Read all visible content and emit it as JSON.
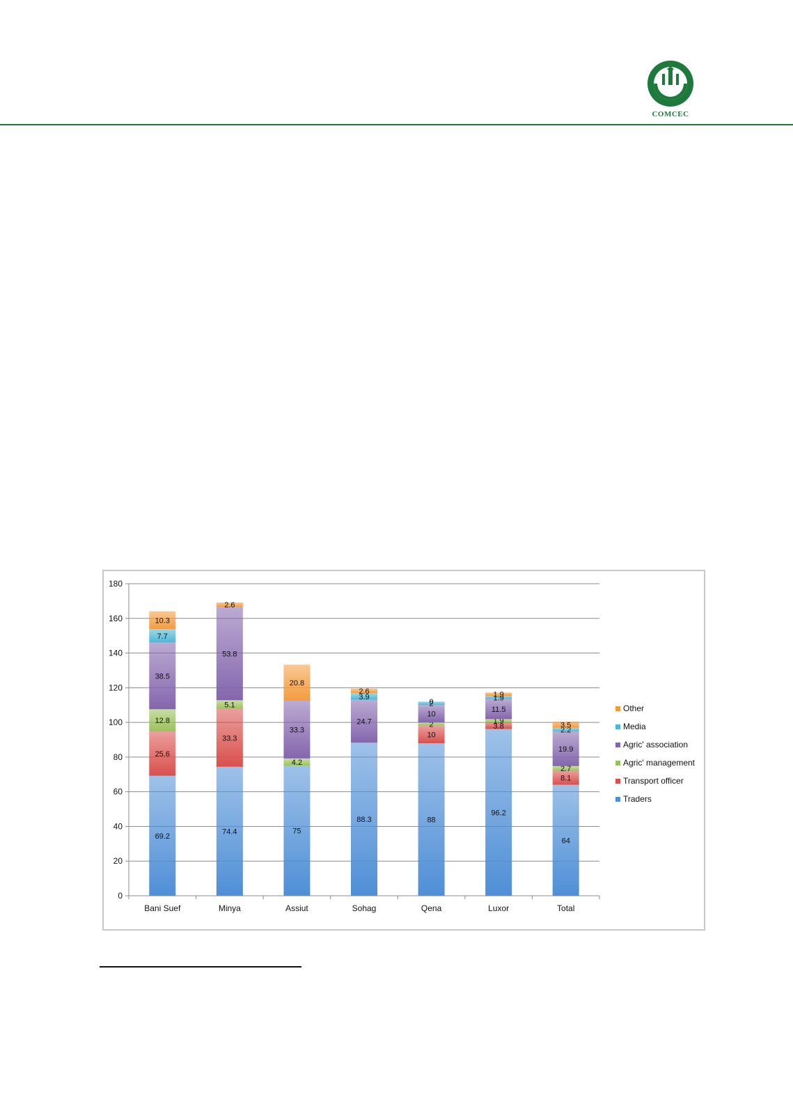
{
  "header": {
    "logo_text": "COMCEC",
    "logo_ring_text": "Cooperation for Development"
  },
  "colors": {
    "brand_green": "#1e7a3c",
    "Traders": "#4f8fd6",
    "Transport officer": "#d9504d",
    "Agric' management": "#9bc25a",
    "Agric' association": "#8466ad",
    "Media": "#4bb8d6",
    "Other": "#f39c3e"
  },
  "chart_data": {
    "type": "bar",
    "stacked": true,
    "title": "",
    "xlabel": "",
    "ylabel": "",
    "ylim": [
      0,
      180
    ],
    "yticks": [
      0,
      20,
      40,
      60,
      80,
      100,
      120,
      140,
      160,
      180
    ],
    "grid": true,
    "legend_position": "right",
    "categories": [
      "Bani Suef",
      "Minya",
      "Assiut",
      "Sohag",
      "Qena",
      "Luxor",
      "Total"
    ],
    "series": [
      {
        "name": "Traders",
        "values": [
          69.2,
          74.4,
          75,
          88.3,
          88,
          96.2,
          64
        ],
        "labels": [
          "69.2",
          "74.4",
          "75",
          "88.3",
          "88",
          "96.2",
          "64"
        ]
      },
      {
        "name": "Transport officer",
        "values": [
          25.6,
          33.3,
          0,
          0,
          10,
          3.8,
          8.1
        ],
        "labels": [
          "25.6",
          "33.3",
          "",
          "",
          "10",
          "3.8",
          "8.1"
        ]
      },
      {
        "name": "Agric' management",
        "values": [
          12.8,
          5.1,
          4.2,
          0,
          2,
          1.9,
          2.7
        ],
        "labels": [
          "12.8",
          "5.1",
          "4.2",
          "",
          "2",
          "1.9",
          "2.7"
        ]
      },
      {
        "name": "Agric' association",
        "values": [
          38.5,
          53.8,
          33.3,
          24.7,
          10,
          11.5,
          19.9
        ],
        "labels": [
          "38.5",
          "53.8",
          "33.3",
          "24.7",
          "10",
          "11.5",
          "19.9"
        ]
      },
      {
        "name": "Media",
        "values": [
          7.7,
          0,
          0,
          3.9,
          2,
          1.9,
          2.2
        ],
        "labels": [
          "7.7",
          "",
          "",
          "3.9",
          "2",
          "1.9",
          "2.2"
        ]
      },
      {
        "name": "Other",
        "values": [
          10.3,
          2.6,
          20.8,
          2.6,
          0,
          1.9,
          3.5
        ],
        "labels": [
          "10.3",
          "2.6",
          "20.8",
          "2.6",
          "0",
          "1.9",
          "3.5"
        ]
      }
    ],
    "legend_order": [
      "Other",
      "Media",
      "Agric' association",
      "Agric' management",
      "Transport officer",
      "Traders"
    ]
  }
}
